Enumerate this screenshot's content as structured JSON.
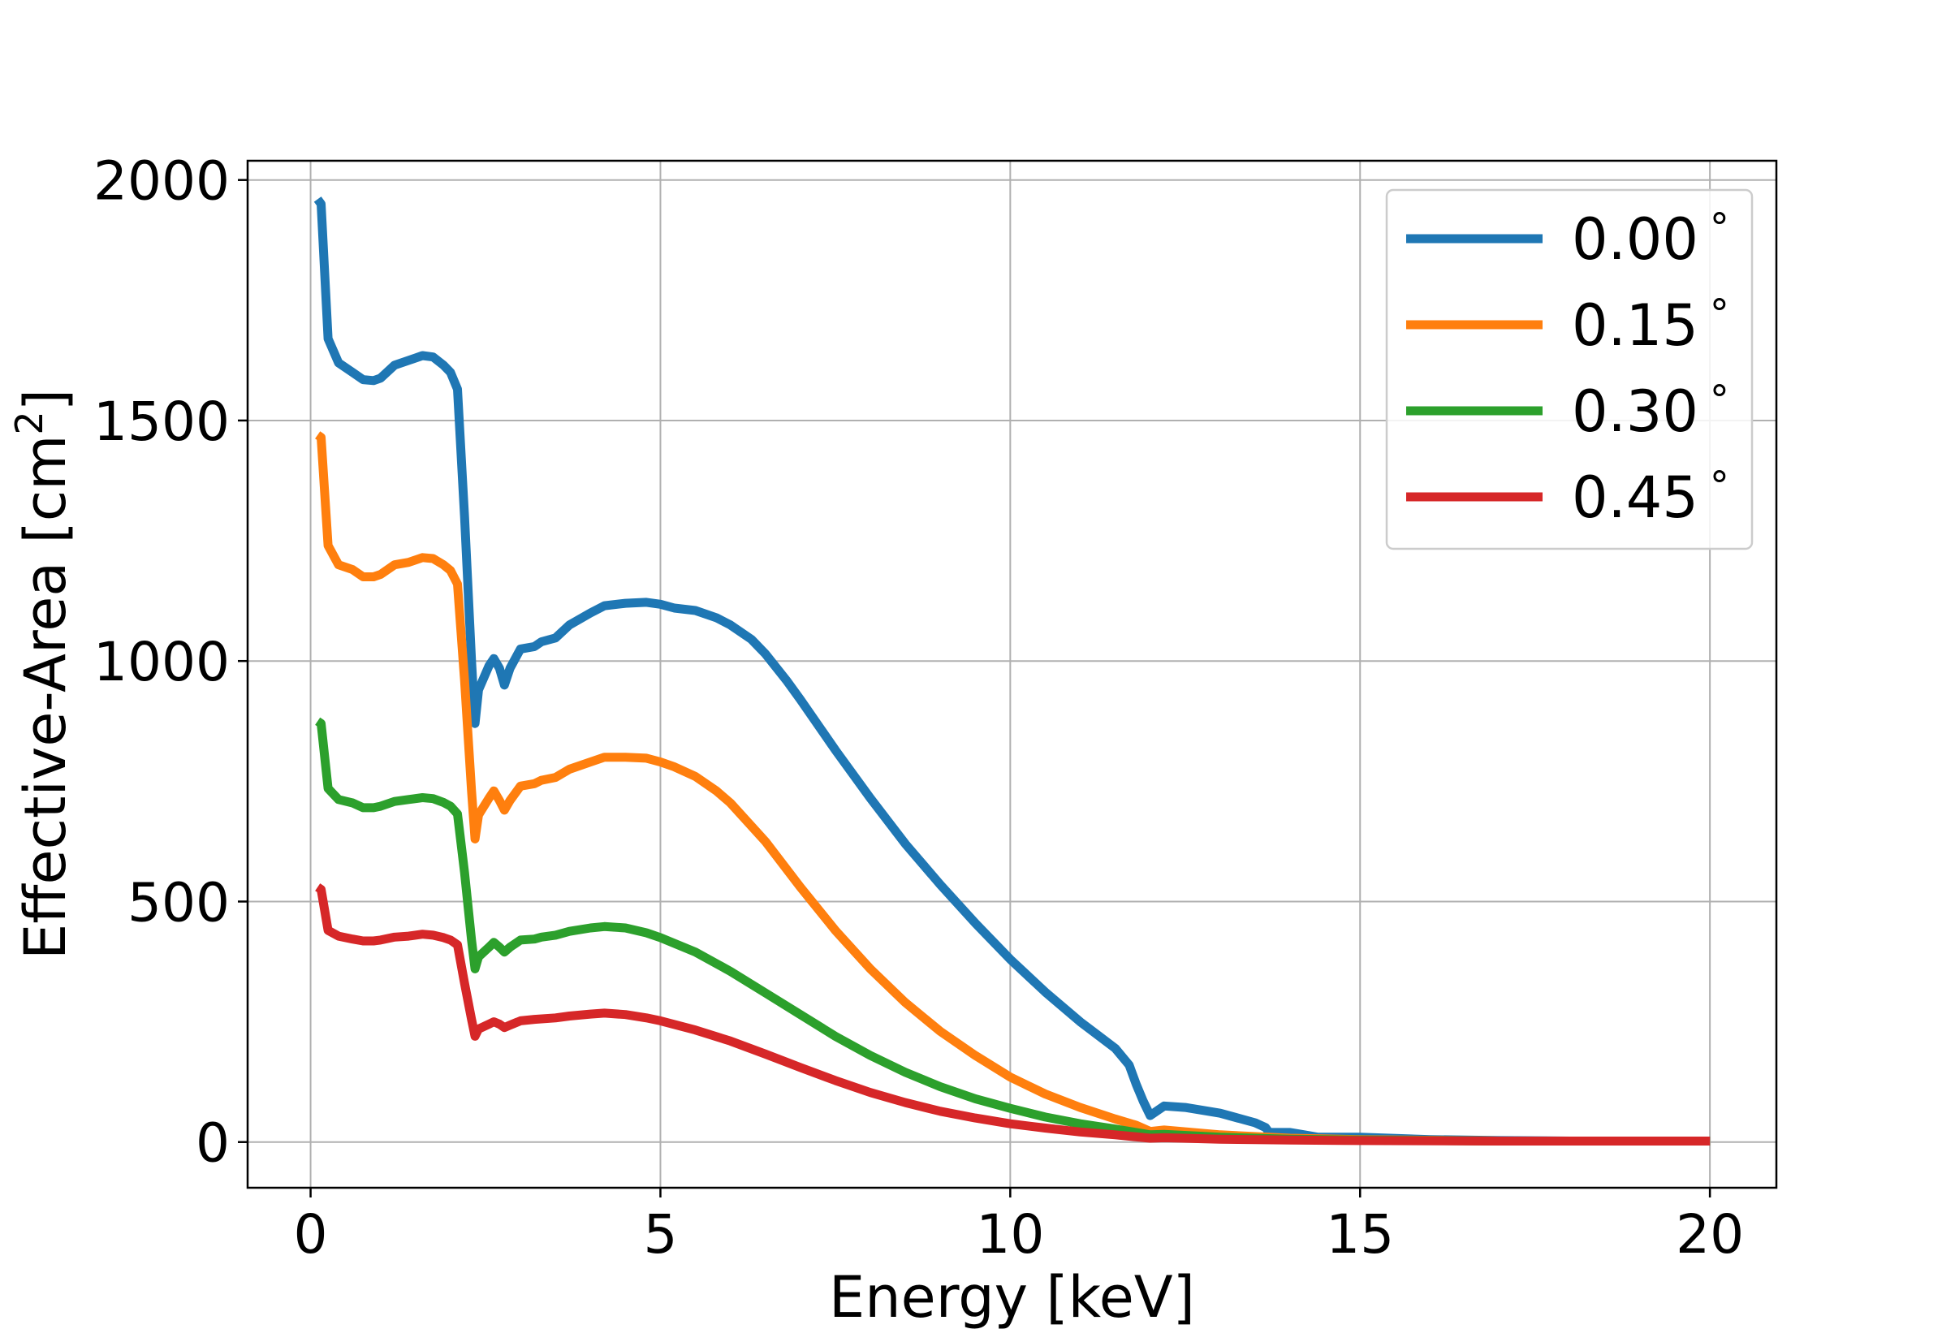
{
  "chart_data": {
    "type": "line",
    "title": "",
    "xlabel": "Energy [keV]",
    "ylabel": {
      "text": "Effective-Area [cm",
      "sup": "2",
      "close": "]"
    },
    "xlim": [
      -0.9,
      20.95
    ],
    "ylim": [
      -95,
      2040
    ],
    "xticks": [
      0,
      5,
      10,
      15,
      20
    ],
    "yticks": [
      0,
      500,
      1000,
      1500,
      2000
    ],
    "xtick_labels": [
      "0",
      "5",
      "10",
      "15",
      "20"
    ],
    "ytick_labels": [
      "0",
      "500",
      "1000",
      "1500",
      "2000"
    ],
    "grid": true,
    "legend_position": "top-right",
    "series": [
      {
        "name": "0.00",
        "unit": "°",
        "color": "#1f77b4",
        "points": [
          [
            0.1,
            1960
          ],
          [
            0.15,
            1950
          ],
          [
            0.25,
            1670
          ],
          [
            0.4,
            1620
          ],
          [
            0.6,
            1600
          ],
          [
            0.75,
            1585
          ],
          [
            0.9,
            1583
          ],
          [
            1.0,
            1588
          ],
          [
            1.2,
            1615
          ],
          [
            1.4,
            1625
          ],
          [
            1.6,
            1635
          ],
          [
            1.75,
            1632
          ],
          [
            1.9,
            1615
          ],
          [
            2.0,
            1600
          ],
          [
            2.1,
            1565
          ],
          [
            2.2,
            1300
          ],
          [
            2.3,
            1000
          ],
          [
            2.35,
            870
          ],
          [
            2.4,
            940
          ],
          [
            2.55,
            990
          ],
          [
            2.62,
            1005
          ],
          [
            2.7,
            985
          ],
          [
            2.77,
            950
          ],
          [
            2.85,
            985
          ],
          [
            3.0,
            1025
          ],
          [
            3.2,
            1030
          ],
          [
            3.3,
            1040
          ],
          [
            3.5,
            1048
          ],
          [
            3.7,
            1075
          ],
          [
            4.0,
            1100
          ],
          [
            4.2,
            1115
          ],
          [
            4.5,
            1120
          ],
          [
            4.8,
            1122
          ],
          [
            5.0,
            1118
          ],
          [
            5.2,
            1110
          ],
          [
            5.5,
            1105
          ],
          [
            5.8,
            1090
          ],
          [
            6.0,
            1075
          ],
          [
            6.3,
            1045
          ],
          [
            6.5,
            1015
          ],
          [
            6.8,
            960
          ],
          [
            7.0,
            920
          ],
          [
            7.5,
            815
          ],
          [
            8.0,
            715
          ],
          [
            8.5,
            620
          ],
          [
            9.0,
            535
          ],
          [
            9.5,
            455
          ],
          [
            10.0,
            380
          ],
          [
            10.5,
            312
          ],
          [
            11.0,
            250
          ],
          [
            11.5,
            195
          ],
          [
            11.7,
            160
          ],
          [
            11.8,
            120
          ],
          [
            11.9,
            85
          ],
          [
            12.0,
            55
          ],
          [
            12.1,
            65
          ],
          [
            12.2,
            75
          ],
          [
            12.5,
            72
          ],
          [
            13.0,
            60
          ],
          [
            13.5,
            40
          ],
          [
            13.65,
            30
          ],
          [
            13.7,
            20
          ],
          [
            14.0,
            20
          ],
          [
            14.2,
            15
          ],
          [
            14.4,
            10
          ],
          [
            15.0,
            10
          ],
          [
            16.0,
            5
          ],
          [
            17.0,
            3
          ],
          [
            18.0,
            2
          ],
          [
            20.0,
            2
          ]
        ]
      },
      {
        "name": "0.15",
        "unit": "°",
        "color": "#ff7f0e",
        "points": [
          [
            0.1,
            1470
          ],
          [
            0.15,
            1465
          ],
          [
            0.25,
            1240
          ],
          [
            0.4,
            1200
          ],
          [
            0.6,
            1190
          ],
          [
            0.75,
            1175
          ],
          [
            0.9,
            1175
          ],
          [
            1.0,
            1180
          ],
          [
            1.2,
            1200
          ],
          [
            1.4,
            1205
          ],
          [
            1.6,
            1215
          ],
          [
            1.75,
            1213
          ],
          [
            1.9,
            1200
          ],
          [
            2.0,
            1188
          ],
          [
            2.1,
            1160
          ],
          [
            2.2,
            960
          ],
          [
            2.3,
            730
          ],
          [
            2.35,
            630
          ],
          [
            2.4,
            680
          ],
          [
            2.55,
            715
          ],
          [
            2.62,
            730
          ],
          [
            2.7,
            710
          ],
          [
            2.77,
            690
          ],
          [
            2.85,
            710
          ],
          [
            3.0,
            740
          ],
          [
            3.2,
            745
          ],
          [
            3.3,
            752
          ],
          [
            3.5,
            758
          ],
          [
            3.7,
            775
          ],
          [
            4.0,
            790
          ],
          [
            4.2,
            800
          ],
          [
            4.5,
            800
          ],
          [
            4.8,
            798
          ],
          [
            5.0,
            790
          ],
          [
            5.2,
            780
          ],
          [
            5.5,
            760
          ],
          [
            5.8,
            730
          ],
          [
            6.0,
            705
          ],
          [
            6.5,
            625
          ],
          [
            7.0,
            530
          ],
          [
            7.5,
            440
          ],
          [
            8.0,
            360
          ],
          [
            8.5,
            290
          ],
          [
            9.0,
            230
          ],
          [
            9.5,
            180
          ],
          [
            10.0,
            135
          ],
          [
            10.5,
            100
          ],
          [
            11.0,
            72
          ],
          [
            11.5,
            48
          ],
          [
            11.8,
            35
          ],
          [
            12.0,
            22
          ],
          [
            12.2,
            25
          ],
          [
            13.0,
            15
          ],
          [
            14.0,
            8
          ],
          [
            15.0,
            5
          ],
          [
            17.0,
            2
          ],
          [
            20.0,
            2
          ]
        ]
      },
      {
        "name": "0.30",
        "unit": "°",
        "color": "#2ca02c",
        "points": [
          [
            0.1,
            875
          ],
          [
            0.15,
            870
          ],
          [
            0.25,
            735
          ],
          [
            0.4,
            712
          ],
          [
            0.6,
            705
          ],
          [
            0.75,
            695
          ],
          [
            0.9,
            695
          ],
          [
            1.0,
            698
          ],
          [
            1.2,
            708
          ],
          [
            1.4,
            712
          ],
          [
            1.6,
            716
          ],
          [
            1.75,
            714
          ],
          [
            1.9,
            706
          ],
          [
            2.0,
            698
          ],
          [
            2.1,
            682
          ],
          [
            2.2,
            560
          ],
          [
            2.3,
            420
          ],
          [
            2.35,
            360
          ],
          [
            2.4,
            385
          ],
          [
            2.55,
            405
          ],
          [
            2.62,
            415
          ],
          [
            2.7,
            405
          ],
          [
            2.77,
            395
          ],
          [
            2.85,
            405
          ],
          [
            3.0,
            420
          ],
          [
            3.2,
            422
          ],
          [
            3.3,
            426
          ],
          [
            3.5,
            430
          ],
          [
            3.7,
            438
          ],
          [
            4.0,
            445
          ],
          [
            4.2,
            448
          ],
          [
            4.5,
            445
          ],
          [
            4.8,
            435
          ],
          [
            5.0,
            425
          ],
          [
            5.5,
            395
          ],
          [
            6.0,
            355
          ],
          [
            6.5,
            310
          ],
          [
            7.0,
            265
          ],
          [
            7.5,
            220
          ],
          [
            8.0,
            180
          ],
          [
            8.5,
            145
          ],
          [
            9.0,
            115
          ],
          [
            9.5,
            90
          ],
          [
            10.0,
            70
          ],
          [
            10.5,
            52
          ],
          [
            11.0,
            38
          ],
          [
            11.5,
            27
          ],
          [
            12.0,
            15
          ],
          [
            12.2,
            16
          ],
          [
            13.0,
            10
          ],
          [
            14.0,
            6
          ],
          [
            15.0,
            4
          ],
          [
            17.0,
            2
          ],
          [
            20.0,
            2
          ]
        ]
      },
      {
        "name": "0.45",
        "unit": "°",
        "color": "#d62728",
        "points": [
          [
            0.1,
            530
          ],
          [
            0.15,
            525
          ],
          [
            0.25,
            440
          ],
          [
            0.4,
            428
          ],
          [
            0.6,
            422
          ],
          [
            0.75,
            418
          ],
          [
            0.9,
            418
          ],
          [
            1.0,
            420
          ],
          [
            1.2,
            426
          ],
          [
            1.4,
            428
          ],
          [
            1.6,
            432
          ],
          [
            1.75,
            430
          ],
          [
            1.9,
            425
          ],
          [
            2.0,
            420
          ],
          [
            2.1,
            410
          ],
          [
            2.2,
            330
          ],
          [
            2.3,
            255
          ],
          [
            2.35,
            220
          ],
          [
            2.4,
            235
          ],
          [
            2.55,
            245
          ],
          [
            2.62,
            250
          ],
          [
            2.7,
            245
          ],
          [
            2.77,
            238
          ],
          [
            2.85,
            243
          ],
          [
            3.0,
            252
          ],
          [
            3.2,
            255
          ],
          [
            3.5,
            258
          ],
          [
            3.7,
            262
          ],
          [
            4.0,
            266
          ],
          [
            4.2,
            268
          ],
          [
            4.5,
            265
          ],
          [
            4.8,
            258
          ],
          [
            5.0,
            252
          ],
          [
            5.5,
            233
          ],
          [
            6.0,
            210
          ],
          [
            6.5,
            183
          ],
          [
            7.0,
            155
          ],
          [
            7.5,
            128
          ],
          [
            8.0,
            103
          ],
          [
            8.5,
            82
          ],
          [
            9.0,
            64
          ],
          [
            9.5,
            50
          ],
          [
            10.0,
            38
          ],
          [
            10.5,
            29
          ],
          [
            11.0,
            21
          ],
          [
            11.5,
            15
          ],
          [
            12.0,
            8
          ],
          [
            12.2,
            9
          ],
          [
            13.0,
            6
          ],
          [
            14.0,
            4
          ],
          [
            15.0,
            3
          ],
          [
            17.0,
            2
          ],
          [
            20.0,
            2
          ]
        ]
      }
    ]
  }
}
